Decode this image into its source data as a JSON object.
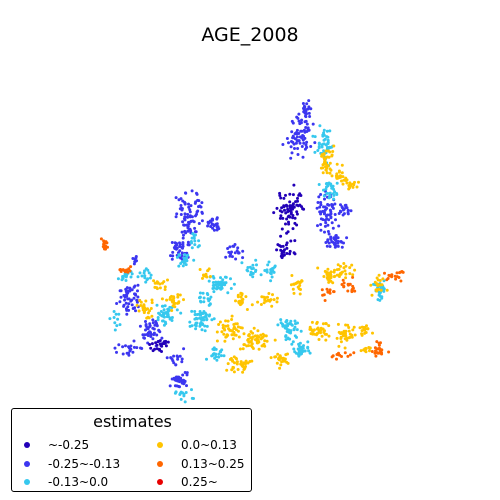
{
  "title": "AGE_2008",
  "legend": {
    "title": "estimates",
    "items": [
      {
        "label": "~-0.25",
        "color": "#2200b8"
      },
      {
        "label": "-0.25~-0.13",
        "color": "#3c36f0"
      },
      {
        "label": "-0.13~0.0",
        "color": "#36c8ee"
      },
      {
        "label": "0.0~0.13",
        "color": "#ffc400"
      },
      {
        "label": "0.13~0.25",
        "color": "#ff6600"
      },
      {
        "label": "0.25~",
        "color": "#e80000"
      }
    ]
  }
}
